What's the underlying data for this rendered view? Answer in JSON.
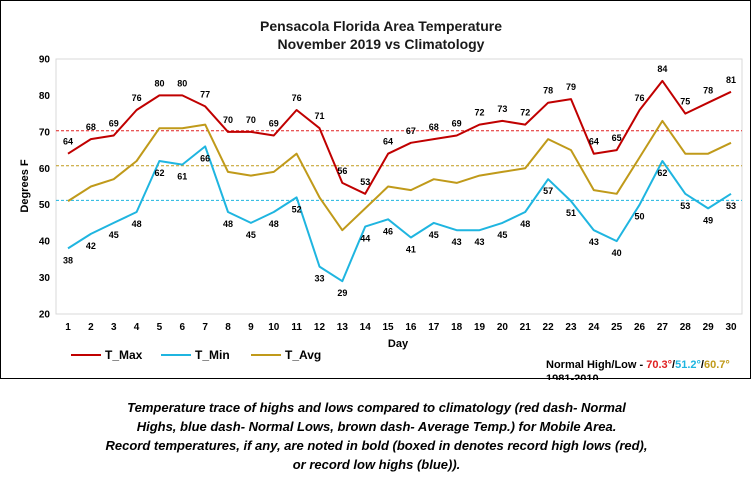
{
  "chart_data": {
    "type": "line",
    "title_lines": [
      "Pensacola Florida Area Temperature",
      "November 2019 vs Climatology"
    ],
    "xlabel": "Day",
    "ylabel": "Degrees F",
    "ylim": [
      20,
      90
    ],
    "yticks": [
      20,
      30,
      40,
      50,
      60,
      70,
      80,
      90
    ],
    "x": [
      1,
      2,
      3,
      4,
      5,
      6,
      7,
      8,
      9,
      10,
      11,
      12,
      13,
      14,
      15,
      16,
      17,
      18,
      19,
      20,
      21,
      22,
      23,
      24,
      25,
      26,
      27,
      28,
      29,
      30
    ],
    "grid": false,
    "legend_position": "bottom-left",
    "series": [
      {
        "name": "T_Max",
        "color": "#C00000",
        "labels": "above",
        "values": [
          64,
          68,
          69,
          76,
          80,
          80,
          77,
          70,
          70,
          69,
          76,
          71,
          56,
          53,
          64,
          67,
          68,
          69,
          72,
          73,
          72,
          78,
          79,
          64,
          65,
          76,
          84,
          75,
          78,
          81
        ]
      },
      {
        "name": "T_Min",
        "color": "#1FB5E0",
        "labels": "below",
        "values": [
          38,
          42,
          45,
          48,
          62,
          61,
          66,
          48,
          45,
          48,
          52,
          33,
          29,
          44,
          46,
          41,
          45,
          43,
          43,
          45,
          48,
          57,
          51,
          43,
          40,
          50,
          62,
          53,
          49,
          53
        ]
      },
      {
        "name": "T_Avg",
        "color": "#C09A1A",
        "labels": "none",
        "values": [
          51,
          55,
          57,
          62,
          71,
          71,
          72,
          59,
          58,
          59,
          64,
          52,
          43,
          49,
          55,
          54,
          57,
          56,
          58,
          59,
          60,
          68,
          65,
          54,
          53,
          63,
          73,
          64,
          64,
          67
        ]
      }
    ],
    "normals": [
      {
        "name": "Normal High",
        "value": 70.3,
        "color": "#E02020"
      },
      {
        "name": "Normal Low",
        "value": 51.2,
        "color": "#1FB5E0"
      },
      {
        "name": "Average",
        "value": 60.7,
        "color": "#C09A1A"
      }
    ],
    "highlight_labels": [
      {
        "series": "T_Max",
        "day": 27,
        "color": "#E02020"
      },
      {
        "series": "T_Max",
        "day": 30,
        "color": "#E02020"
      },
      {
        "series": "T_Min",
        "day": 13,
        "color": "#1A1ACC"
      }
    ],
    "normals_text": {
      "prefix": "Normal High/Low - ",
      "high": "70.3°",
      "sep1": "/",
      "low": "51.2°",
      "sep2": "/",
      "avg": "60.7°",
      "period": "1981-2010"
    }
  },
  "caption": [
    "Temperature trace of highs and lows compared to climatology (red dash- Normal",
    "Highs, blue dash- Normal Lows, brown dash- Average Temp.) for Mobile Area.",
    "Record temperatures, if any, are noted in bold (boxed in denotes record high lows (red),",
    "or record low highs (blue))."
  ]
}
